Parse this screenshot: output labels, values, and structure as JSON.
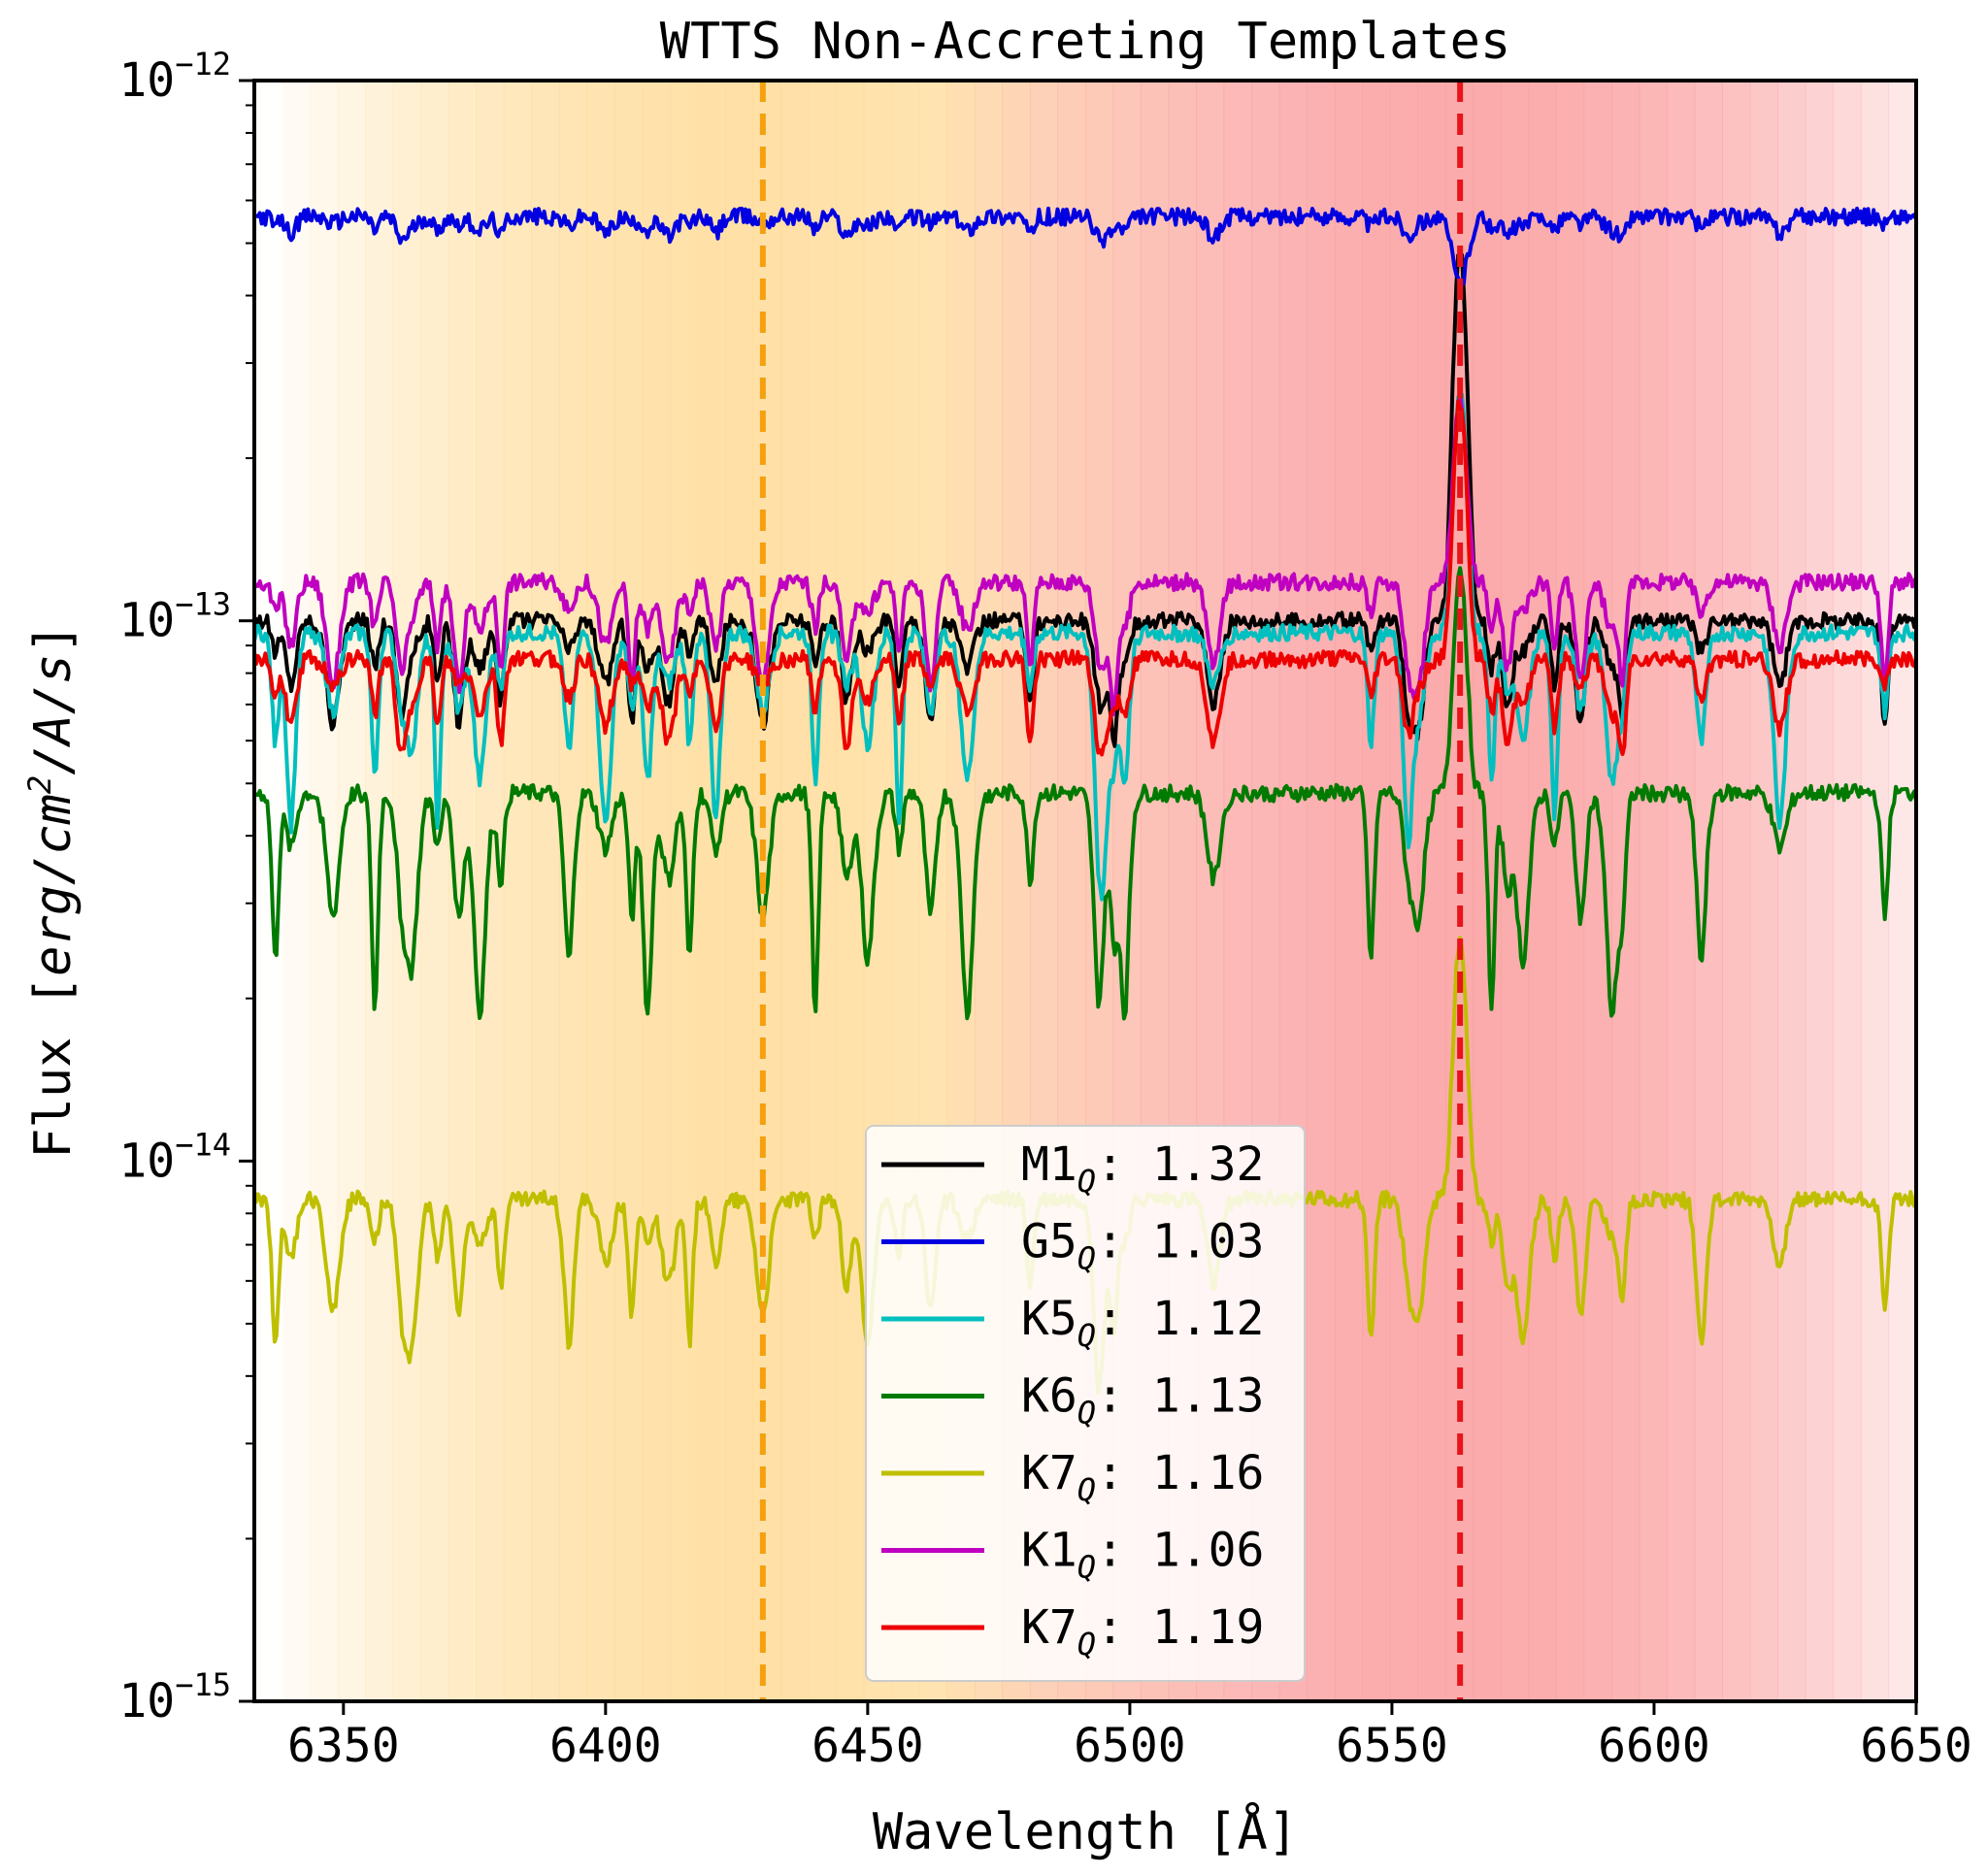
{
  "chart_data": {
    "type": "line",
    "title": "WTTS Non-Accreting Templates",
    "xlabel": "Wavelength [Å]",
    "ylabel_prefix": "Flux [",
    "ylabel_unit": "erg/cm",
    "ylabel_exp": "2",
    "ylabel_rest": "/A/s",
    "ylabel_suffix": "]",
    "xlim": [
      6333,
      6650
    ],
    "ylim": [
      1e-15,
      1e-12
    ],
    "yscale": "log",
    "x_ticks": [
      "6350",
      "6400",
      "6450",
      "6500",
      "6550",
      "6600",
      "6650"
    ],
    "y_ticks": [
      {
        "base": "10",
        "exp": "−12"
      },
      {
        "base": "10",
        "exp": "−13"
      },
      {
        "base": "10",
        "exp": "−14"
      },
      {
        "base": "10",
        "exp": "−15"
      }
    ],
    "shaded_regions": [
      {
        "center": 6430,
        "halfwidth": 95,
        "color": "#ffd68a"
      },
      {
        "center": 6563,
        "halfwidth": 100,
        "color": "#fa9c9c"
      }
    ],
    "vlines": [
      {
        "x": 6430,
        "color": "#f5a00f",
        "style": "dashed"
      },
      {
        "x": 6563,
        "color": "#e8141a",
        "style": "dashed"
      }
    ],
    "legend_position": "lower center",
    "series": [
      {
        "name": "M1",
        "sub": "Q",
        "score": ": 1.32",
        "color": "#000000",
        "base": 1e-13,
        "depth": 0.35,
        "peak": 3.8
      },
      {
        "name": "G5",
        "sub": "Q",
        "score": ": 1.03",
        "color": "#0000e0",
        "base": 5.6e-13,
        "depth": 0.08,
        "peak": 0
      },
      {
        "name": "K5",
        "sub": "Q",
        "score": ": 1.12",
        "color": "#00bfbf",
        "base": 9.5e-14,
        "depth": 0.55,
        "peak": 1.8
      },
      {
        "name": "K6",
        "sub": "Q",
        "score": ": 1.13",
        "color": "#007a00",
        "base": 4.8e-14,
        "depth": 0.6,
        "peak": 1.6
      },
      {
        "name": "K7",
        "sub": "Q",
        "score": ": 1.16",
        "color": "#bfbf00",
        "base": 8.5e-15,
        "depth": 0.45,
        "peak": 2.0
      },
      {
        "name": "K1",
        "sub": "Q",
        "score": ": 1.06",
        "color": "#c000c0",
        "base": 1.18e-13,
        "depth": 0.35,
        "peak": 1.2
      },
      {
        "name": "K7",
        "sub": "Q",
        "score": ": 1.19",
        "color": "#ee0000",
        "base": 8.5e-14,
        "depth": 0.3,
        "peak": 2.0
      }
    ]
  }
}
